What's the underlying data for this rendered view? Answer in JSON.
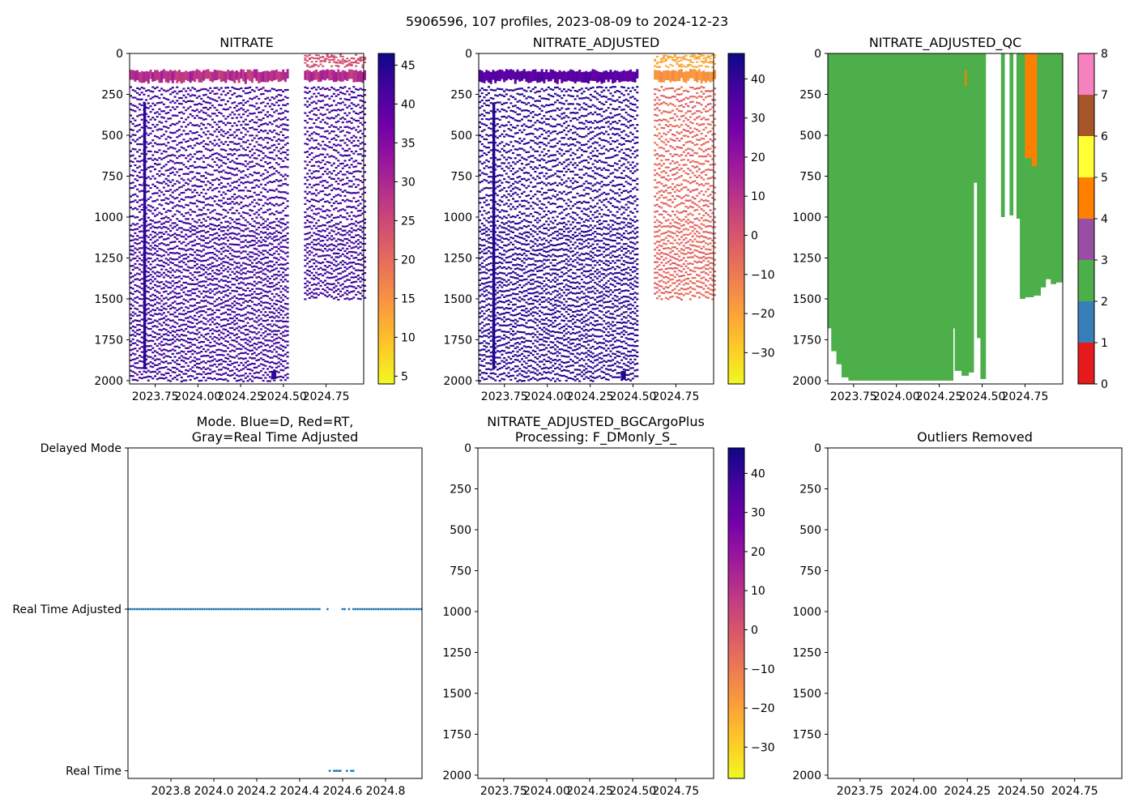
{
  "figure": {
    "suptitle": "5906596, 107 profiles, 2023-08-09 to 2024-12-23"
  },
  "colors": {
    "plasma_r": [
      "#f0f921",
      "#fdca26",
      "#fb9f3a",
      "#ed7953",
      "#d8576b",
      "#bd3786",
      "#9c179e",
      "#7201a8",
      "#46039f",
      "#0d0887"
    ],
    "qc": [
      "#e41a1c",
      "#377eb8",
      "#4daf4a",
      "#984ea3",
      "#ff7f00",
      "#ffff33",
      "#a65628",
      "#f781bf",
      "#999999"
    ],
    "mode_dots": "#1f77b4"
  },
  "chart_data": [
    {
      "id": "nitrate",
      "type": "heatmap",
      "title": "NITRATE",
      "xlim": [
        2023.6,
        2024.97
      ],
      "ylim": [
        2020,
        0
      ],
      "xticks": [
        2023.75,
        2024.0,
        2024.25,
        2024.5,
        2024.75
      ],
      "xtick_labels": [
        "2023.75",
        "2024.00",
        "2024.25",
        "2024.50",
        "2024.75"
      ],
      "yticks": [
        0,
        250,
        500,
        750,
        1000,
        1250,
        1500,
        1750,
        2000
      ],
      "colorbar": {
        "range": [
          4,
          46.5
        ],
        "ticks": [
          5,
          10,
          15,
          20,
          25,
          30,
          35,
          40,
          45
        ]
      },
      "surface_value": 29,
      "deep_value": 44,
      "coverage_gap": [
        2024.52,
        2024.61
      ],
      "late_profiles_max_depth": 1500,
      "instrument_profile": {
        "time": 2023.68,
        "depth_range": [
          300,
          1930
        ]
      },
      "deep_patch": {
        "time": 2024.43,
        "depth_range": [
          1940,
          1990
        ]
      }
    },
    {
      "id": "nitrate_adjusted",
      "type": "heatmap",
      "title": "NITRATE_ADJUSTED",
      "xlim": [
        2023.6,
        2024.97
      ],
      "ylim": [
        2020,
        0
      ],
      "xticks": [
        2023.75,
        2024.0,
        2024.25,
        2024.5,
        2024.75
      ],
      "xtick_labels": [
        "2023.75",
        "2024.00",
        "2024.25",
        "2024.50",
        "2024.75"
      ],
      "yticks": [
        0,
        250,
        500,
        750,
        1000,
        1250,
        1500,
        1750,
        2000
      ],
      "colorbar": {
        "range": [
          -38,
          46.5
        ],
        "ticks": [
          -30,
          -20,
          -10,
          0,
          10,
          20,
          30,
          40
        ]
      },
      "surface_value": 33,
      "deep_value": 44,
      "late_surface_value": -16,
      "late_deep_value": -5,
      "coverage_gap": [
        2024.52,
        2024.61
      ],
      "late_profiles_max_depth": 1500,
      "instrument_profile": {
        "time": 2023.68,
        "depth_range": [
          300,
          1930
        ]
      },
      "deep_patch": {
        "time": 2024.43,
        "depth_range": [
          1940,
          1990
        ]
      }
    },
    {
      "id": "nitrate_adjusted_qc",
      "type": "heatmap",
      "title": "NITRATE_ADJUSTED_QC",
      "xlim": [
        2023.6,
        2024.97
      ],
      "ylim": [
        2020,
        0
      ],
      "xticks": [
        2023.75,
        2024.0,
        2024.25,
        2024.5,
        2024.75
      ],
      "xtick_labels": [
        "2023.75",
        "2024.00",
        "2024.25",
        "2024.50",
        "2024.75"
      ],
      "yticks": [
        0,
        250,
        500,
        750,
        1000,
        1250,
        1500,
        1750,
        2000
      ],
      "colorbar": {
        "range": [
          0,
          8
        ],
        "ticks": [
          0,
          1,
          2,
          3,
          4,
          5,
          6,
          7,
          8
        ]
      },
      "background_flag": 2,
      "profile_bottoms": [
        [
          2023.6,
          1680
        ],
        [
          2023.62,
          1820
        ],
        [
          2023.65,
          1900
        ],
        [
          2023.68,
          1980
        ],
        [
          2023.72,
          2000
        ],
        [
          2023.8,
          2000
        ],
        [
          2023.9,
          2000
        ],
        [
          2024.0,
          2000
        ],
        [
          2024.1,
          2000
        ],
        [
          2024.2,
          2000
        ],
        [
          2024.3,
          2000
        ],
        [
          2024.33,
          1680
        ],
        [
          2024.34,
          1940
        ],
        [
          2024.38,
          1970
        ],
        [
          2024.42,
          1950
        ],
        [
          2024.45,
          790
        ],
        [
          2024.47,
          1740
        ],
        [
          2024.49,
          1990
        ],
        [
          2024.52,
          0
        ],
        [
          2024.61,
          1000
        ],
        [
          2024.63,
          0
        ],
        [
          2024.66,
          990
        ],
        [
          2024.68,
          0
        ],
        [
          2024.7,
          1010
        ],
        [
          2024.72,
          1500
        ],
        [
          2024.75,
          1490
        ],
        [
          2024.8,
          1480
        ],
        [
          2024.84,
          1430
        ],
        [
          2024.87,
          1380
        ],
        [
          2024.9,
          1410
        ],
        [
          2024.93,
          1400
        ],
        [
          2024.97,
          1400
        ]
      ],
      "bad_flag_regions": [
        {
          "flag": 4,
          "time_range": [
            2024.75,
            2024.79
          ],
          "depth_range": [
            0,
            640
          ]
        },
        {
          "flag": 4,
          "time_range": [
            2024.79,
            2024.82
          ],
          "depth_range": [
            0,
            690
          ]
        },
        {
          "flag": 4,
          "time_range": [
            2024.4,
            2024.41
          ],
          "depth_range": [
            100,
            200
          ]
        }
      ]
    },
    {
      "id": "mode",
      "type": "scatter",
      "title": [
        "Mode. Blue=D, Red=RT,",
        "Gray=Real Time Adjusted"
      ],
      "xlim": [
        2023.6,
        2024.97
      ],
      "xticks": [
        2023.8,
        2024.0,
        2024.2,
        2024.4,
        2024.6,
        2024.8
      ],
      "xtick_labels": [
        "2023.8",
        "2024.0",
        "2024.2",
        "2024.4",
        "2024.6",
        "2024.8"
      ],
      "ytick_labels": [
        "Delayed Mode",
        "Real Time Adjusted",
        "Real Time"
      ],
      "real_time_adjusted_range": [
        2023.6,
        2024.5
      ],
      "real_time_adjusted_extra": [
        2024.53,
        2024.6,
        2024.61,
        2024.63
      ],
      "real_time_adjusted_late_range": [
        2024.65,
        2024.97
      ],
      "real_time_points": [
        2024.54,
        2024.56,
        2024.57,
        2024.58,
        2024.59,
        2024.62,
        2024.64,
        2024.65
      ]
    },
    {
      "id": "bgcargoplus",
      "type": "heatmap",
      "title": [
        "NITRATE_ADJUSTED_BGCArgoPlus",
        "Processing: F_DMonly_S_"
      ],
      "xlim": [
        2023.6,
        2024.97
      ],
      "ylim": [
        2020,
        0
      ],
      "xticks": [
        2023.75,
        2024.0,
        2024.25,
        2024.5,
        2024.75
      ],
      "xtick_labels": [
        "2023.75",
        "2024.00",
        "2024.25",
        "2024.50",
        "2024.75"
      ],
      "yticks": [
        0,
        250,
        500,
        750,
        1000,
        1250,
        1500,
        1750,
        2000
      ],
      "colorbar": {
        "range": [
          -38,
          46.5
        ],
        "ticks": [
          -30,
          -20,
          -10,
          0,
          10,
          20,
          30,
          40
        ]
      }
    },
    {
      "id": "outliers",
      "type": "scatter",
      "title": "Outliers Removed",
      "xlim": [
        2023.6,
        2024.97
      ],
      "ylim": [
        2020,
        0
      ],
      "xticks": [
        2023.75,
        2024.0,
        2024.25,
        2024.5,
        2024.75
      ],
      "xtick_labels": [
        "2023.75",
        "2024.00",
        "2024.25",
        "2024.50",
        "2024.75"
      ],
      "yticks": [
        0,
        250,
        500,
        750,
        1000,
        1250,
        1500,
        1750,
        2000
      ]
    }
  ]
}
